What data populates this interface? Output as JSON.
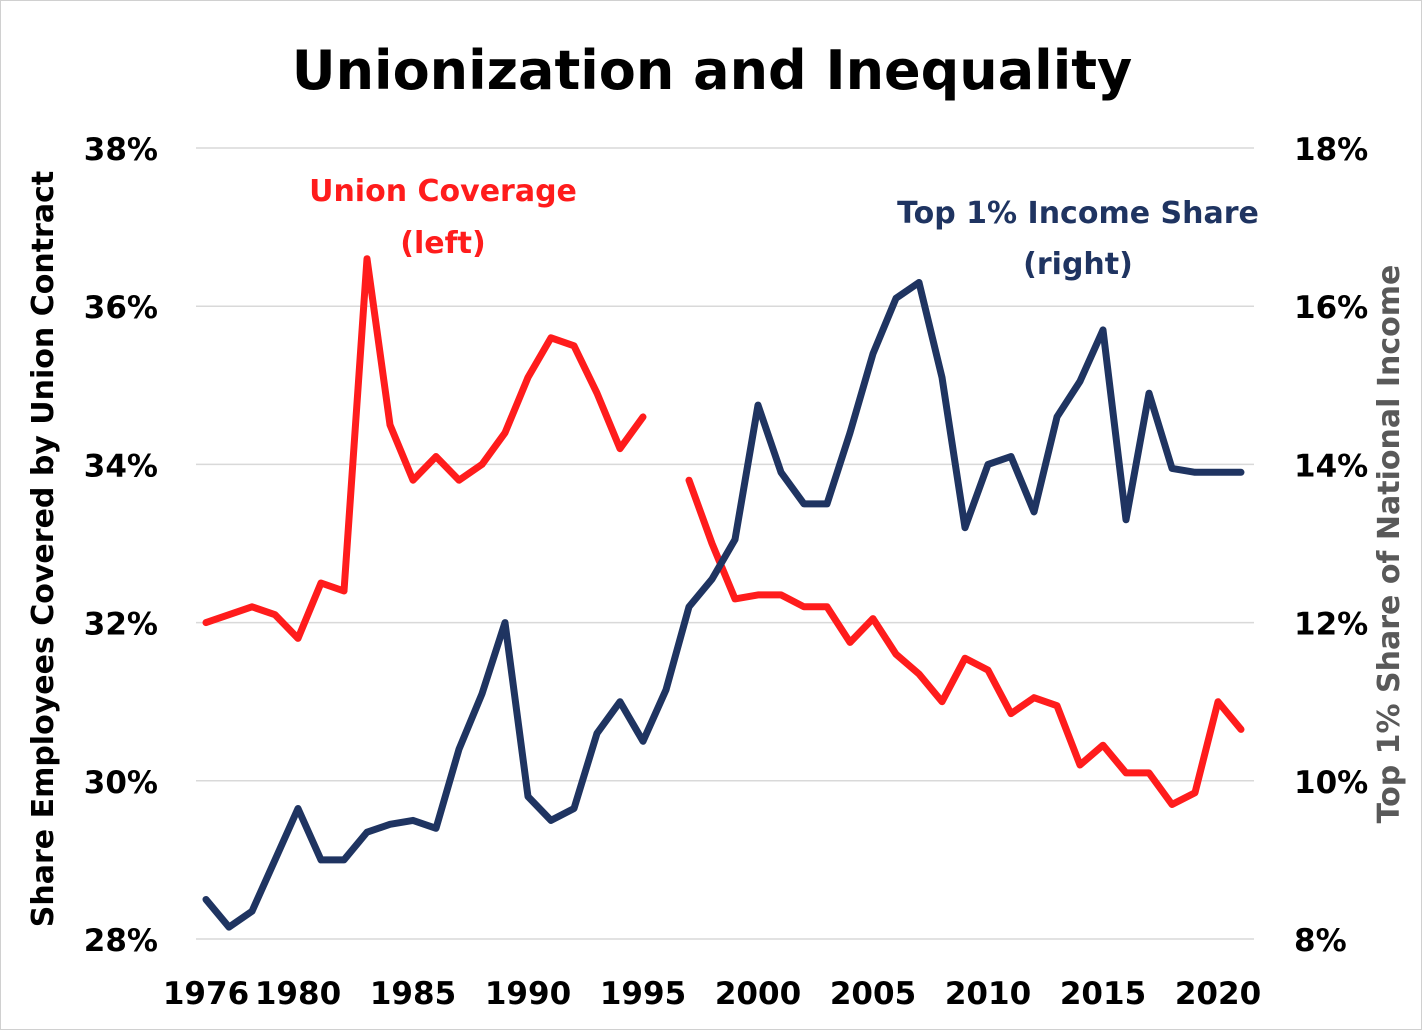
{
  "chart_data": {
    "type": "line",
    "title": "Unionization and Inequality",
    "ylabel_left": "Share Employees Covered by Union Contract",
    "ylabel_right": "Top 1% Share of National Income",
    "ylim_left": [
      28,
      38
    ],
    "ylim_right": [
      8,
      18
    ],
    "yticks_left": [
      "28%",
      "30%",
      "32%",
      "34%",
      "36%",
      "38%"
    ],
    "yticks_right": [
      "8%",
      "10%",
      "12%",
      "14%",
      "16%",
      "18%"
    ],
    "xticks": [
      "1976",
      "1980",
      "1985",
      "1990",
      "1995",
      "2000",
      "2005",
      "2010",
      "2015",
      "2020"
    ],
    "xlim": [
      1976,
      2021
    ],
    "grid": true,
    "colors": {
      "union": "#ff1c1c",
      "top1": "#1f3461",
      "right_axis_label": "#595959"
    },
    "series": [
      {
        "name": "Union Coverage (left)",
        "label_lines": [
          "Union Coverage",
          "(left)"
        ],
        "axis": "left",
        "x": [
          1976,
          1977,
          1978,
          1979,
          1980,
          1981,
          1982,
          1983,
          1984,
          1985,
          1986,
          1987,
          1988,
          1989,
          1990,
          1991,
          1992,
          1993,
          1994,
          1995,
          1996,
          1997,
          1998,
          1999,
          2000,
          2001,
          2002,
          2003,
          2004,
          2005,
          2006,
          2007,
          2008,
          2009,
          2010,
          2011,
          2012,
          2013,
          2014,
          2015,
          2016,
          2017,
          2018,
          2019,
          2020,
          2021
        ],
        "values": [
          32.0,
          32.1,
          32.2,
          32.1,
          31.8,
          32.5,
          32.4,
          36.6,
          34.5,
          33.8,
          34.1,
          33.8,
          34.0,
          34.4,
          35.1,
          35.6,
          35.5,
          34.9,
          34.2,
          34.6,
          null,
          33.8,
          33.0,
          32.3,
          32.35,
          32.35,
          32.2,
          32.2,
          31.75,
          32.05,
          31.6,
          31.35,
          31.0,
          31.55,
          31.4,
          30.85,
          31.05,
          30.95,
          30.2,
          30.45,
          30.1,
          30.1,
          29.7,
          29.85,
          31.0,
          30.65
        ]
      },
      {
        "name": "Top 1% Income Share (right)",
        "label_lines": [
          "Top 1% Income Share",
          "(right)"
        ],
        "axis": "right",
        "x": [
          1976,
          1977,
          1978,
          1979,
          1980,
          1981,
          1982,
          1983,
          1984,
          1985,
          1986,
          1987,
          1988,
          1989,
          1990,
          1991,
          1992,
          1993,
          1994,
          1995,
          1996,
          1997,
          1998,
          1999,
          2000,
          2001,
          2002,
          2003,
          2004,
          2005,
          2006,
          2007,
          2008,
          2009,
          2010,
          2011,
          2012,
          2013,
          2014,
          2015,
          2016,
          2017,
          2018,
          2019,
          2020,
          2021
        ],
        "values": [
          8.5,
          8.15,
          8.35,
          9.0,
          9.65,
          9.0,
          9.0,
          9.35,
          9.45,
          9.5,
          9.4,
          10.4,
          11.1,
          12.0,
          9.8,
          9.5,
          9.65,
          10.6,
          11.0,
          10.5,
          11.15,
          12.2,
          12.55,
          13.05,
          14.75,
          13.9,
          13.5,
          13.5,
          14.4,
          15.4,
          16.1,
          16.3,
          15.1,
          13.2,
          14.0,
          14.1,
          13.4,
          14.6,
          15.05,
          15.7,
          13.3,
          14.9,
          13.95,
          13.9,
          13.9,
          13.9
        ]
      }
    ]
  }
}
